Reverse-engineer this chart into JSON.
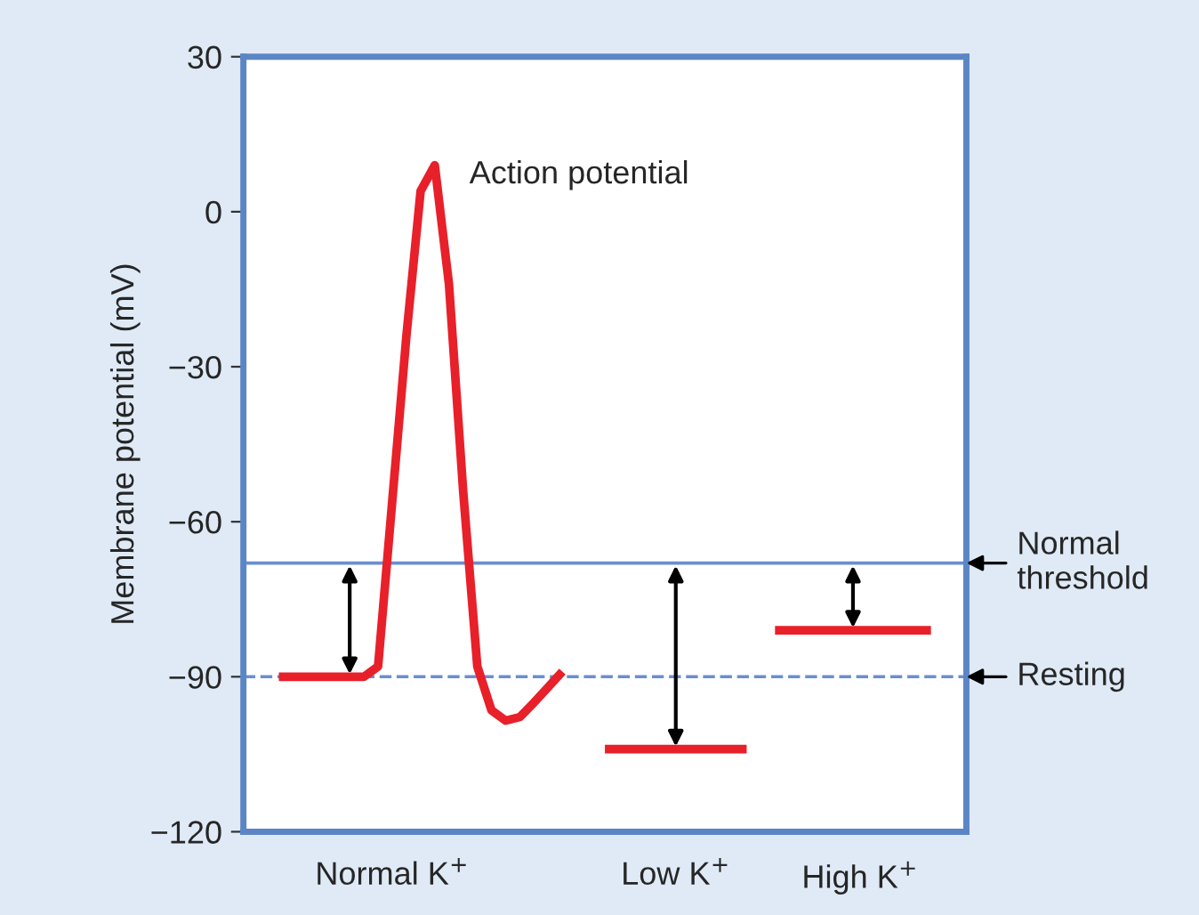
{
  "chart_data": {
    "type": "line",
    "ylabel": "Membrane potential (mV)",
    "categories": [
      null,
      null,
      null,
      null,
      null,
      null,
      null,
      null,
      null,
      null,
      "Normal K$^{+}$",
      null,
      null,
      null,
      null,
      null,
      null,
      null,
      null,
      null,
      null,
      null,
      null,
      null,
      null,
      null,
      null,
      null,
      null,
      null,
      "Low K$^{+}$",
      null,
      null,
      null,
      null,
      null,
      null,
      null,
      null,
      null,
      null,
      null,
      null,
      "High K$^{+}$",
      null,
      null,
      null,
      null,
      null,
      null,
      null
    ],
    "ylim": [
      -120,
      30
    ],
    "yticks": [
      30,
      0,
      {
        "value": -30,
        "label": "−30"
      },
      {
        "value": -60,
        "label": "−60"
      },
      {
        "value": -90,
        "label": "−90"
      },
      {
        "value": -120,
        "label": "−120"
      }
    ],
    "series": [
      {
        "color": "#e8202a",
        "values": [
          null,
          null,
          -90,
          -90,
          -90,
          -90,
          -90,
          -90,
          -90,
          -88,
          -56,
          -24,
          4,
          9,
          -14,
          -54,
          -88,
          -96.5,
          -98.5,
          -97.8,
          -95,
          -92,
          -89,
          null,
          null,
          null,
          null,
          null,
          null,
          null,
          null,
          null,
          null,
          null,
          null,
          null,
          null,
          null,
          null,
          null,
          null,
          null,
          null,
          null,
          null,
          null,
          null,
          null,
          null,
          null,
          null
        ]
      },
      {
        "color": "#e8202a",
        "values": [
          null,
          null,
          null,
          null,
          null,
          null,
          null,
          null,
          null,
          null,
          null,
          null,
          null,
          null,
          null,
          null,
          null,
          null,
          null,
          null,
          null,
          null,
          null,
          null,
          null,
          -104,
          -104,
          -104,
          -104,
          -104,
          -104,
          -104,
          -104,
          -104,
          -104,
          -104,
          null,
          null,
          null,
          null,
          null,
          null,
          null,
          null,
          null,
          null,
          null,
          null,
          null,
          null,
          null
        ]
      },
      {
        "color": "#e8202a",
        "values": [
          null,
          null,
          null,
          null,
          null,
          null,
          null,
          null,
          null,
          null,
          null,
          null,
          null,
          null,
          null,
          null,
          null,
          null,
          null,
          null,
          null,
          null,
          null,
          null,
          null,
          null,
          null,
          null,
          null,
          null,
          null,
          null,
          null,
          null,
          null,
          null,
          null,
          -81,
          -81,
          -81,
          -81,
          -81,
          -81,
          -81,
          -81,
          -81,
          -81,
          -81,
          -81,
          null,
          null
        ]
      }
    ],
    "ref_lines": [
      {
        "axis": "y",
        "value": -68,
        "label": "Normal\nthreshold",
        "color": "#6a8fd0",
        "line_style": "solid"
      },
      {
        "axis": "y",
        "value": -90,
        "label": "Resting",
        "color": "#6a8fd0",
        "line_style": "dashed"
      }
    ],
    "annotations": [
      "Action potential"
    ],
    "grid": false,
    "legend": false
  }
}
